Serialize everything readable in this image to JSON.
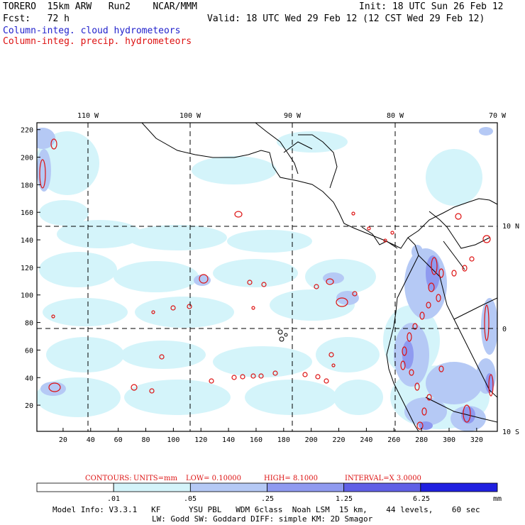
{
  "header": {
    "model": "TORERO  15km ARW   Run2    NCAR/MMM",
    "init": "Init: 18 UTC Sun 26 Feb 12",
    "fcst": "Fcst:   72 h",
    "valid": "Valid: 18 UTC Wed 29 Feb 12 (12 CST Wed 29 Feb 12)",
    "line_cloud": "Column-integ. cloud hydrometeors",
    "line_precip": "Column-integ. precip. hydrometeors"
  },
  "colors": {
    "cloud_label": "#2222cc",
    "precip_label": "#dd1111",
    "contour": "#dd1111",
    "fill_levels": [
      "#ffffff",
      "#d4f4fa",
      "#b5c9f5",
      "#8f9af0",
      "#6060e6",
      "#2020e0"
    ]
  },
  "map": {
    "top_lon_labels": [
      "110 W",
      "100 W",
      "90 W",
      "80 W",
      "70 W"
    ],
    "right_lat_labels": [
      "10 N",
      "0",
      "10 S"
    ],
    "x_ticks": [
      20,
      40,
      60,
      80,
      100,
      120,
      140,
      160,
      180,
      200,
      220,
      240,
      260,
      280,
      300,
      320
    ],
    "y_ticks": [
      20,
      40,
      60,
      80,
      100,
      120,
      140,
      160,
      180,
      200,
      220
    ],
    "x_range": [
      1,
      335
    ],
    "y_range": [
      1,
      225
    ]
  },
  "contour_info": {
    "contours": "CONTOURS:",
    "units": "UNITS=mm",
    "low": "LOW= 0.10000",
    "high": "HIGH=  8.1000",
    "interval": "INTERVAL=X  3.0000"
  },
  "colorbar": {
    "labels": [
      ".01",
      ".05",
      ".25",
      "1.25",
      "6.25"
    ],
    "unit": "mm"
  },
  "footer": {
    "line1": "Model Info: V3.3.1   KF      YSU PBL   WDM 6class  Noah LSM  15 km,    44 levels,    60 sec",
    "line2": "LW: Godd SW: Goddard DIFF: simple KM: 2D Smagor"
  }
}
